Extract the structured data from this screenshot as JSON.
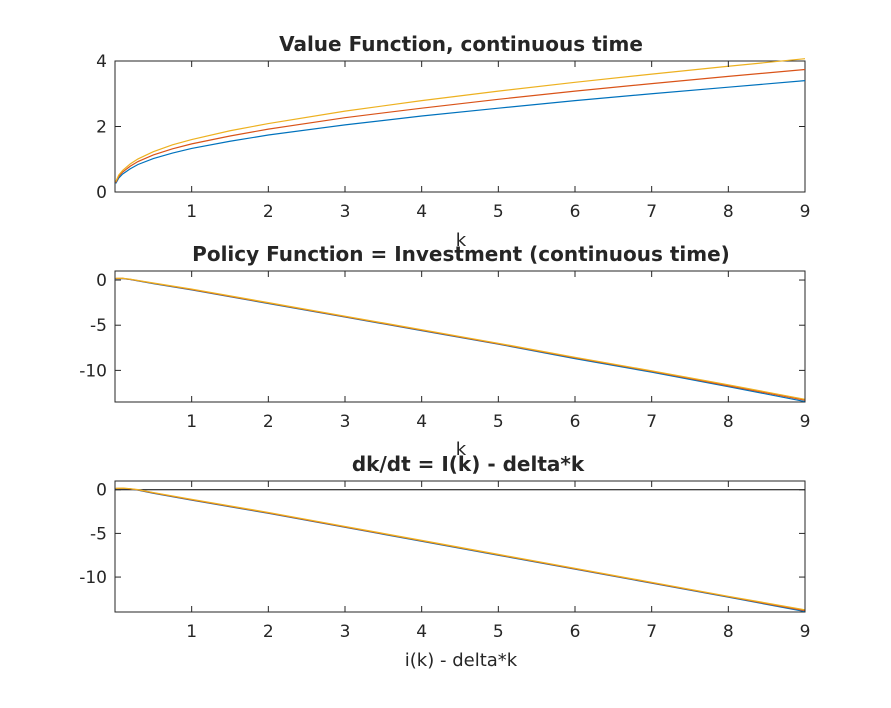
{
  "chart_data": [
    {
      "type": "line",
      "title": "Value Function, continuous time",
      "xlabel": "k",
      "ylabel": "",
      "xlim": [
        0,
        9
      ],
      "ylim": [
        0,
        4
      ],
      "xticks": [
        1,
        2,
        3,
        4,
        5,
        6,
        7,
        8,
        9
      ],
      "yticks": [
        0,
        2,
        4
      ],
      "grid": false,
      "series": [
        {
          "color": "#0072BD",
          "x": [
            0.01,
            0.05,
            0.1,
            0.2,
            0.3,
            0.5,
            0.75,
            1,
            1.5,
            2,
            3,
            4,
            5,
            6,
            7,
            8,
            9
          ],
          "y": [
            0.26,
            0.43,
            0.55,
            0.71,
            0.84,
            1.02,
            1.19,
            1.33,
            1.55,
            1.74,
            2.05,
            2.32,
            2.56,
            2.79,
            3.0,
            3.2,
            3.4
          ]
        },
        {
          "color": "#D95319",
          "x": [
            0.01,
            0.05,
            0.1,
            0.2,
            0.3,
            0.5,
            0.75,
            1,
            1.5,
            2,
            3,
            4,
            5,
            6,
            7,
            8,
            9
          ],
          "y": [
            0.29,
            0.48,
            0.61,
            0.79,
            0.93,
            1.13,
            1.32,
            1.47,
            1.71,
            1.92,
            2.27,
            2.56,
            2.83,
            3.08,
            3.31,
            3.53,
            3.74
          ]
        },
        {
          "color": "#EDB120",
          "x": [
            0.01,
            0.05,
            0.1,
            0.2,
            0.3,
            0.5,
            0.75,
            1,
            1.5,
            2,
            3,
            4,
            5,
            6,
            7,
            8,
            9
          ],
          "y": [
            0.32,
            0.52,
            0.66,
            0.86,
            1.01,
            1.23,
            1.44,
            1.6,
            1.87,
            2.09,
            2.47,
            2.79,
            3.08,
            3.35,
            3.6,
            3.84,
            4.07
          ]
        }
      ]
    },
    {
      "type": "line",
      "title": "Policy Function = Investment (continuous time)",
      "xlabel": "k",
      "ylabel": "",
      "xlim": [
        0,
        9
      ],
      "ylim": [
        -13.5,
        1
      ],
      "xticks": [
        1,
        2,
        3,
        4,
        5,
        6,
        7,
        8,
        9
      ],
      "yticks": [
        0,
        -5,
        -10
      ],
      "grid": false,
      "series": [
        {
          "color": "#0072BD",
          "x": [
            0.01,
            0.1,
            0.2,
            0.5,
            1,
            2,
            3,
            4,
            5,
            6,
            7,
            8,
            9
          ],
          "y": [
            0.15,
            0.17,
            0.05,
            -0.4,
            -1.1,
            -2.6,
            -4.1,
            -5.6,
            -7.1,
            -8.7,
            -10.2,
            -11.8,
            -13.45
          ]
        },
        {
          "color": "#D95319",
          "x": [
            0.01,
            0.1,
            0.2,
            0.5,
            1,
            2,
            3,
            4,
            5,
            6,
            7,
            8,
            9
          ],
          "y": [
            0.17,
            0.18,
            0.07,
            -0.36,
            -1.05,
            -2.55,
            -4.05,
            -5.55,
            -7.05,
            -8.6,
            -10.1,
            -11.7,
            -13.3
          ]
        },
        {
          "color": "#EDB120",
          "x": [
            0.01,
            0.1,
            0.2,
            0.5,
            1,
            2,
            3,
            4,
            5,
            6,
            7,
            8,
            9
          ],
          "y": [
            0.19,
            0.2,
            0.09,
            -0.33,
            -1.0,
            -2.5,
            -4.0,
            -5.5,
            -7.0,
            -8.55,
            -10.05,
            -11.6,
            -13.2
          ]
        }
      ]
    },
    {
      "type": "line",
      "title": "dk/dt  = I(k) - delta*k",
      "xlabel": "i(k) - delta*k",
      "ylabel": "",
      "xlim": [
        0,
        9
      ],
      "ylim": [
        -14,
        1
      ],
      "xticks": [
        1,
        2,
        3,
        4,
        5,
        6,
        7,
        8,
        9
      ],
      "yticks": [
        0,
        -5,
        -10
      ],
      "grid": false,
      "reference_line": {
        "color": "#000000",
        "y": 0
      },
      "series": [
        {
          "color": "#0072BD",
          "x": [
            0.01,
            0.1,
            0.2,
            0.3,
            0.5,
            1,
            2,
            3,
            4,
            5,
            6,
            7,
            8,
            9
          ],
          "y": [
            0.12,
            0.14,
            0.08,
            -0.05,
            -0.4,
            -1.2,
            -2.7,
            -4.3,
            -5.9,
            -7.5,
            -9.1,
            -10.7,
            -12.3,
            -13.95
          ]
        },
        {
          "color": "#D95319",
          "x": [
            0.01,
            0.1,
            0.2,
            0.3,
            0.5,
            1,
            2,
            3,
            4,
            5,
            6,
            7,
            8,
            9
          ],
          "y": [
            0.14,
            0.16,
            0.1,
            -0.02,
            -0.36,
            -1.15,
            -2.65,
            -4.25,
            -5.85,
            -7.45,
            -9.05,
            -10.65,
            -12.25,
            -13.85
          ]
        },
        {
          "color": "#EDB120",
          "x": [
            0.01,
            0.1,
            0.2,
            0.3,
            0.5,
            1,
            2,
            3,
            4,
            5,
            6,
            7,
            8,
            9
          ],
          "y": [
            0.16,
            0.18,
            0.12,
            0.01,
            -0.32,
            -1.1,
            -2.6,
            -4.2,
            -5.8,
            -7.4,
            -9.0,
            -10.6,
            -12.2,
            -13.75
          ]
        }
      ]
    }
  ]
}
